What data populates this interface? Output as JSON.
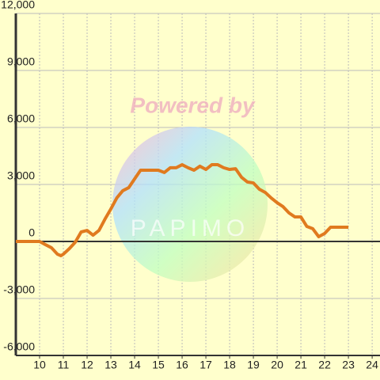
{
  "chart_data": {
    "type": "line",
    "watermark": "Powered by",
    "logo_text": "PAPIMO",
    "x": [
      9,
      9.5,
      10,
      10.25,
      10.5,
      10.75,
      10.9,
      11,
      11.25,
      11.5,
      11.75,
      12,
      12.25,
      12.5,
      12.75,
      13,
      13.25,
      13.5,
      13.75,
      14,
      14.25,
      14.5,
      15,
      15.25,
      15.5,
      15.75,
      16,
      16.25,
      16.5,
      16.75,
      17,
      17.25,
      17.5,
      17.75,
      18,
      18.25,
      18.5,
      18.75,
      19,
      19.25,
      19.5,
      19.75,
      20,
      20.25,
      20.5,
      20.75,
      21,
      21.25,
      21.5,
      21.75,
      22,
      22.25,
      22.5,
      23
    ],
    "series": [
      {
        "color": "#e07a1f",
        "values": [
          0,
          0,
          0,
          -170,
          -330,
          -670,
          -750,
          -670,
          -380,
          -40,
          500,
          580,
          330,
          580,
          1170,
          1710,
          2290,
          2670,
          2830,
          3290,
          3750,
          3750,
          3750,
          3630,
          3880,
          3880,
          4040,
          3880,
          3750,
          3960,
          3790,
          4040,
          4040,
          3880,
          3790,
          3830,
          3380,
          3130,
          3080,
          2750,
          2580,
          2290,
          2040,
          1830,
          1500,
          1290,
          1290,
          790,
          670,
          250,
          420,
          750,
          750,
          750
        ]
      }
    ],
    "xlim": [
      9,
      24.33
    ],
    "ylim": [
      -6000,
      12000
    ],
    "xticks": [
      10,
      11,
      12,
      13,
      14,
      15,
      16,
      17,
      18,
      19,
      20,
      21,
      22,
      23,
      24
    ],
    "yticks": [
      {
        "value": -6000,
        "label": "-6,000"
      },
      {
        "value": -3000,
        "label": "-3,000"
      },
      0,
      {
        "value": 3000,
        "label": "3,000"
      },
      {
        "value": 6000,
        "label": "6,000"
      },
      {
        "value": 9000,
        "label": "9,000"
      },
      {
        "value": 12000,
        "label": "12,000"
      }
    ],
    "grid": true
  }
}
